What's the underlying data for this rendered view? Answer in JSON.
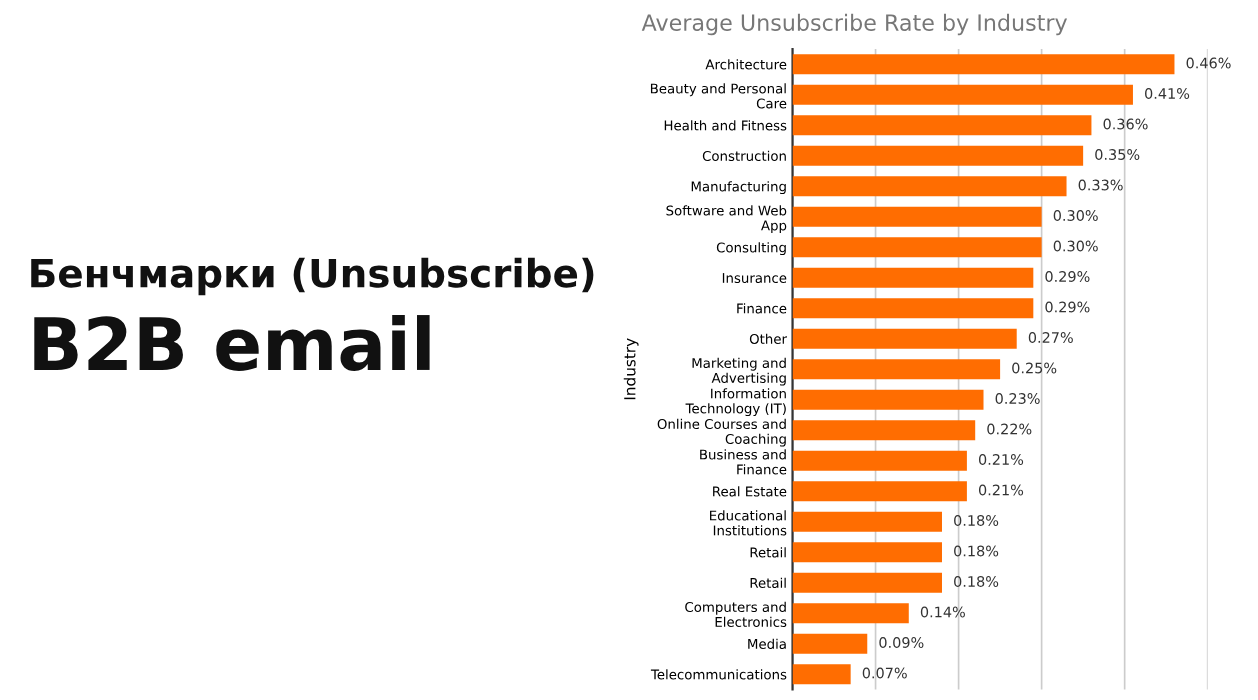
{
  "chart_data": {
    "type": "bar",
    "orientation": "horizontal",
    "title": "Average Unsubscribe Rate by Industry",
    "ylabel": "Industry",
    "annotations": [
      "Бенчмарки (Unsubscribe)",
      "B2B email"
    ],
    "categories": [
      "Architecture",
      "Beauty and Personal Care",
      "Health and Fitness",
      "Construction",
      "Manufacturing",
      "Software and Web App",
      "Consulting",
      "Insurance",
      "Finance",
      "Other",
      "Marketing and Advertising",
      "Information Technology (IT)",
      "Online Courses and Coaching",
      "Business and Finance",
      "Real Estate",
      "Educational Institutions",
      "Retail",
      "Retail",
      "Computers and Electronics",
      "Media",
      "Telecommunications"
    ],
    "values": [
      0.46,
      0.41,
      0.36,
      0.35,
      0.33,
      0.3,
      0.3,
      0.29,
      0.29,
      0.27,
      0.25,
      0.23,
      0.22,
      0.21,
      0.21,
      0.18,
      0.18,
      0.18,
      0.14,
      0.09,
      0.07
    ],
    "value_labels": [
      "0.46%",
      "0.41%",
      "0.36%",
      "0.35%",
      "0.33%",
      "0.30%",
      "0.30%",
      "0.29%",
      "0.29%",
      "0.27%",
      "0.25%",
      "0.23%",
      "0.22%",
      "0.21%",
      "0.21%",
      "0.18%",
      "0.18%",
      "0.18%",
      "0.14%",
      "0.09%",
      "0.07%"
    ],
    "color": "#ff6d01",
    "xlim": [
      0,
      0.5
    ],
    "xticks": [
      {
        "value": 0,
        "label": null
      },
      {
        "value": 0.1,
        "label": null
      },
      {
        "value": 0.2,
        "label": null
      },
      {
        "value": 0.3,
        "label": null
      },
      {
        "value": 0.4,
        "label": null
      },
      {
        "value": 0.5,
        "label": null
      }
    ],
    "grid": "x",
    "tick_labels": "y"
  }
}
